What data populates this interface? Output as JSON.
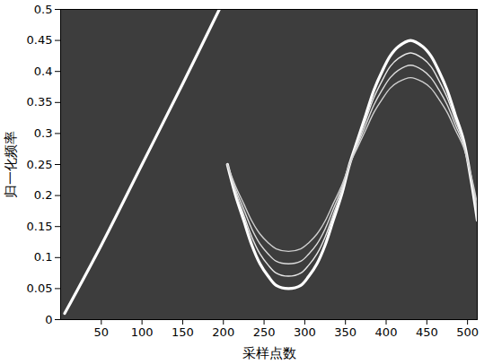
{
  "chart_data": {
    "type": "line",
    "xlabel": "采样点数",
    "ylabel": "归一化频率",
    "xlim": [
      0,
      512
    ],
    "ylim": [
      0,
      0.5
    ],
    "xticks": [
      50,
      100,
      150,
      200,
      250,
      300,
      350,
      400,
      450,
      500
    ],
    "yticks": [
      0,
      0.05,
      0.1,
      0.15,
      0.2,
      0.25,
      0.3,
      0.35,
      0.4,
      0.45,
      0.5
    ],
    "grid": false,
    "series": [
      {
        "color": "#ffffff",
        "line_style": "solid",
        "x": [
          5,
          50,
          100,
          150,
          195
        ],
        "values": [
          0.01,
          0.12,
          0.25,
          0.38,
          0.5
        ]
      },
      {
        "color": "#ffffff",
        "line_style": "solid",
        "x": [
          205,
          215,
          225,
          235,
          245,
          255,
          265,
          280,
          295,
          305,
          315,
          325,
          335,
          345,
          355,
          365,
          375,
          385,
          395,
          405,
          415,
          430,
          445,
          455,
          465,
          475,
          485,
          495,
          505,
          512
        ],
        "values": [
          0.25,
          0.2,
          0.16,
          0.12,
          0.09,
          0.07,
          0.055,
          0.05,
          0.055,
          0.07,
          0.09,
          0.12,
          0.16,
          0.2,
          0.25,
          0.29,
          0.33,
          0.37,
          0.4,
          0.425,
          0.44,
          0.45,
          0.44,
          0.425,
          0.4,
          0.37,
          0.33,
          0.29,
          0.22,
          0.16
        ]
      },
      {
        "color": "#e8e8e8",
        "line_style": "solid",
        "x": [
          205,
          215,
          225,
          235,
          245,
          255,
          265,
          280,
          295,
          305,
          315,
          325,
          335,
          345,
          355,
          365,
          375,
          385,
          395,
          405,
          415,
          430,
          445,
          455,
          465,
          475,
          485,
          495,
          505,
          512
        ],
        "values": [
          0.25,
          0.205,
          0.169,
          0.133,
          0.106,
          0.088,
          0.075,
          0.07,
          0.075,
          0.088,
          0.106,
          0.133,
          0.169,
          0.205,
          0.25,
          0.286,
          0.322,
          0.358,
          0.385,
          0.408,
          0.421,
          0.43,
          0.421,
          0.408,
          0.385,
          0.358,
          0.322,
          0.286,
          0.223,
          0.169
        ]
      },
      {
        "color": "#dddddd",
        "line_style": "solid",
        "x": [
          205,
          215,
          225,
          235,
          245,
          255,
          265,
          280,
          295,
          305,
          315,
          325,
          335,
          345,
          355,
          365,
          375,
          385,
          395,
          405,
          415,
          430,
          445,
          455,
          465,
          475,
          485,
          495,
          505,
          512
        ],
        "values": [
          0.25,
          0.21,
          0.178,
          0.146,
          0.122,
          0.106,
          0.094,
          0.09,
          0.094,
          0.106,
          0.122,
          0.146,
          0.178,
          0.21,
          0.25,
          0.282,
          0.314,
          0.346,
          0.37,
          0.39,
          0.402,
          0.41,
          0.402,
          0.39,
          0.37,
          0.346,
          0.314,
          0.282,
          0.226,
          0.178
        ]
      },
      {
        "color": "#d0d0d0",
        "line_style": "solid",
        "x": [
          205,
          215,
          225,
          235,
          245,
          255,
          265,
          280,
          295,
          305,
          315,
          325,
          335,
          345,
          355,
          365,
          375,
          385,
          395,
          405,
          415,
          430,
          445,
          455,
          465,
          475,
          485,
          495,
          505,
          512
        ],
        "values": [
          0.25,
          0.215,
          0.187,
          0.159,
          0.138,
          0.124,
          0.114,
          0.11,
          0.114,
          0.124,
          0.138,
          0.159,
          0.187,
          0.215,
          0.25,
          0.278,
          0.306,
          0.334,
          0.355,
          0.373,
          0.383,
          0.39,
          0.383,
          0.373,
          0.355,
          0.334,
          0.306,
          0.278,
          0.229,
          0.187
        ]
      }
    ]
  }
}
